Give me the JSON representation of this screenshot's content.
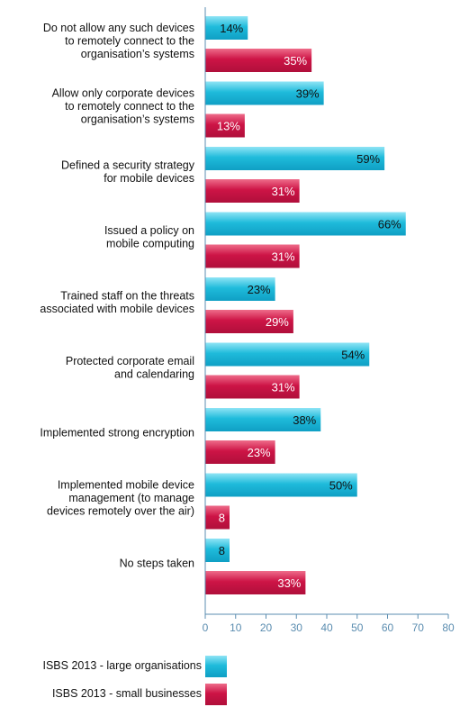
{
  "chart_data": {
    "type": "bar",
    "orientation": "horizontal",
    "categories": [
      [
        "Do not allow any such devices",
        "to remotely connect to the",
        "organisation’s systems"
      ],
      [
        "Allow only corporate devices",
        "to remotely connect to the",
        "organisation’s systems"
      ],
      [
        "Defined a security strategy",
        "for mobile devices"
      ],
      [
        "Issued a policy on",
        "mobile computing"
      ],
      [
        "Trained staff on the threats",
        "associated with mobile devices"
      ],
      [
        "Protected corporate email",
        "and calendaring"
      ],
      [
        "Implemented strong encryption"
      ],
      [
        "Implemented mobile device",
        "management (to manage",
        "devices remotely over the air)"
      ],
      [
        "No steps taken"
      ]
    ],
    "series": [
      {
        "name": "ISBS 2013 - large organisations",
        "values": [
          14,
          39,
          59,
          66,
          23,
          54,
          38,
          50,
          8
        ],
        "labels": [
          "14%",
          "39%",
          "59%",
          "66%",
          "23%",
          "54%",
          "38%",
          "50%",
          "8"
        ],
        "color": "#19b6d8",
        "label_color": "#111111"
      },
      {
        "name": "ISBS 2013 - small businesses",
        "values": [
          35,
          13,
          31,
          31,
          29,
          31,
          23,
          8,
          33
        ],
        "labels": [
          "35%",
          "13%",
          "31%",
          "31%",
          "29%",
          "31%",
          "23%",
          "8",
          "33%"
        ],
        "color": "#cc1446",
        "label_color": "#ffffff"
      }
    ],
    "xlim": [
      0,
      80
    ],
    "xticks": [
      "0",
      "10",
      "20",
      "30",
      "40",
      "50",
      "60",
      "70",
      "80"
    ],
    "axis_color": "#5b8db0",
    "grid": false,
    "legend_position": "bottom-left"
  },
  "legend": {
    "items": [
      {
        "label": "ISBS 2013 - large organisations",
        "color": "#19b6d8"
      },
      {
        "label": "ISBS 2013 - small businesses",
        "color": "#cc1446"
      }
    ]
  }
}
